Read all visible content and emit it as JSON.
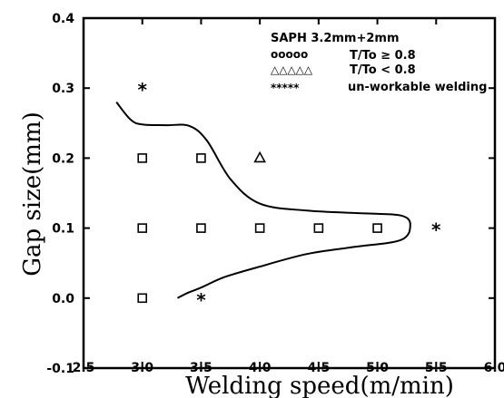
{
  "chart_data": {
    "type": "scatter",
    "title": "",
    "xlabel": "Welding speed(m/min)",
    "ylabel": "Gap size(mm)",
    "xlim": [
      2.5,
      6.0
    ],
    "ylim": [
      -0.1,
      0.4
    ],
    "x_ticks": [
      "2.5",
      "3.0",
      "3.5",
      "4.0",
      "4.5",
      "5.0",
      "5.5",
      "6.0"
    ],
    "y_ticks": [
      "-0.1",
      "0.0",
      "0.1",
      "0.2",
      "0.3",
      "0.4"
    ],
    "legend": {
      "placement": "top-right",
      "title": "SAPH  3.2mm+2mm",
      "entries": [
        {
          "symbol": "ooooo",
          "marker": "square",
          "label": "T/To ≥ 0.8"
        },
        {
          "symbol": "△△△△△",
          "marker": "triangle",
          "label": "T/To < 0.8"
        },
        {
          "symbol": "*****",
          "marker": "star",
          "label": "un-workable welding"
        }
      ]
    },
    "series": [
      {
        "marker": "square",
        "points": [
          [
            3.0,
            0.2
          ],
          [
            3.5,
            0.2
          ],
          [
            3.0,
            0.1
          ],
          [
            3.5,
            0.1
          ],
          [
            4.0,
            0.1
          ],
          [
            4.5,
            0.1
          ],
          [
            5.0,
            0.1
          ],
          [
            3.0,
            0.0
          ]
        ]
      },
      {
        "marker": "triangle",
        "points": [
          [
            4.0,
            0.2
          ]
        ]
      },
      {
        "marker": "star",
        "points": [
          [
            3.0,
            0.3
          ],
          [
            5.5,
            0.1
          ],
          [
            3.5,
            0.0
          ]
        ]
      }
    ],
    "boundary_curve": [
      [
        2.78,
        0.28
      ],
      [
        2.9,
        0.255
      ],
      [
        3.0,
        0.248
      ],
      [
        3.2,
        0.247
      ],
      [
        3.4,
        0.246
      ],
      [
        3.55,
        0.225
      ],
      [
        3.75,
        0.17
      ],
      [
        4.0,
        0.135
      ],
      [
        4.4,
        0.125
      ],
      [
        4.9,
        0.121
      ],
      [
        5.2,
        0.118
      ],
      [
        5.28,
        0.105
      ],
      [
        5.2,
        0.083
      ],
      [
        4.8,
        0.073
      ],
      [
        4.4,
        0.063
      ],
      [
        4.0,
        0.045
      ],
      [
        3.7,
        0.03
      ],
      [
        3.5,
        0.015
      ],
      [
        3.38,
        0.007
      ],
      [
        3.3,
        0.0
      ]
    ],
    "grid": false
  }
}
